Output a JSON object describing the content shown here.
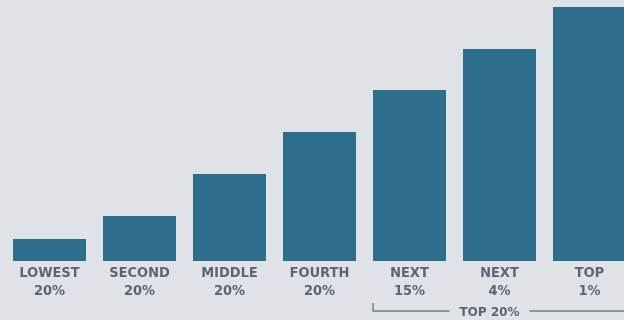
{
  "chart_data": {
    "type": "bar",
    "title": "",
    "xlabel": "",
    "ylabel": "",
    "categories": [
      {
        "line1": "LOWEST",
        "line2": "20%"
      },
      {
        "line1": "SECOND",
        "line2": "20%"
      },
      {
        "line1": "MIDDLE",
        "line2": "20%"
      },
      {
        "line1": "FOURTH",
        "line2": "20%"
      },
      {
        "line1": "NEXT",
        "line2": "15%"
      },
      {
        "line1": "NEXT",
        "line2": "4%"
      },
      {
        "line1": "TOP",
        "line2": "1%"
      }
    ],
    "values": [
      22,
      45,
      87,
      129,
      171,
      212,
      254
    ],
    "ylim": [
      0,
      254
    ],
    "grid": false,
    "bar_color": "#2c6e8c",
    "group_bracket": {
      "label": "TOP 20%",
      "from_index": 4,
      "to_index": 6
    }
  }
}
